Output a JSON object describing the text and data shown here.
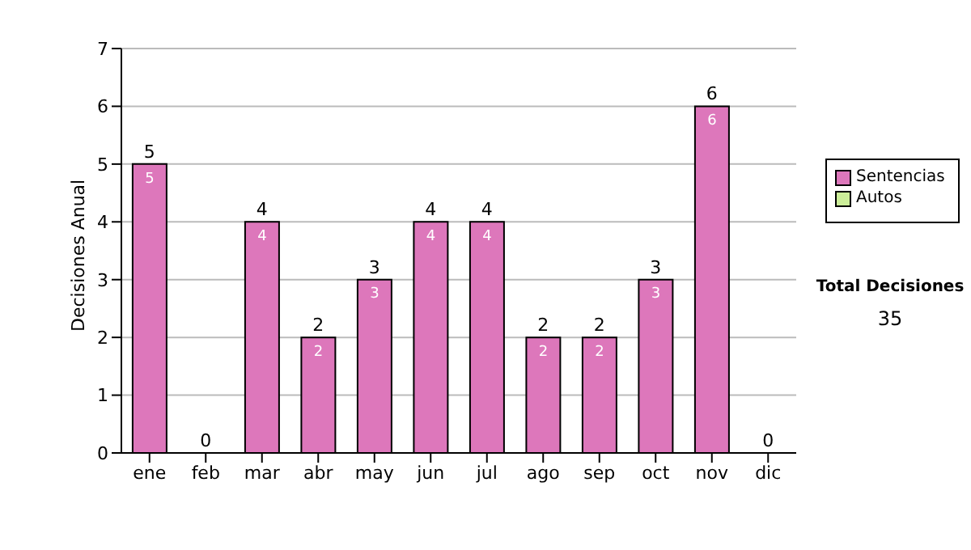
{
  "chart_data": {
    "type": "bar",
    "stacked": true,
    "ylabel": "Decisiones Anual",
    "categories": [
      "ene",
      "feb",
      "mar",
      "abr",
      "may",
      "jun",
      "jul",
      "ago",
      "sep",
      "oct",
      "nov",
      "dic"
    ],
    "series": [
      {
        "name": "Sentencias",
        "color": "#dd77bb",
        "values": [
          5,
          0,
          4,
          2,
          3,
          4,
          4,
          2,
          2,
          3,
          6,
          0
        ],
        "value_labels": [
          "5",
          null,
          "4",
          "2",
          "3",
          "4",
          "4",
          "2",
          "2",
          "3",
          "6",
          null
        ]
      },
      {
        "name": "Autos",
        "color": "#ccee99",
        "values": [
          0,
          0,
          0,
          0,
          0,
          0,
          0,
          0,
          0,
          0,
          0,
          0
        ]
      }
    ],
    "totals": [
      "5",
      "0",
      "4",
      "2",
      "3",
      "4",
      "4",
      "2",
      "2",
      "3",
      "6",
      "0"
    ],
    "ylim": [
      0,
      7
    ],
    "yticks": [
      0,
      1,
      2,
      3,
      4,
      5,
      6,
      7
    ],
    "grid": "y",
    "legend": "right",
    "annotations": [
      "Total Decisiones",
      "35"
    ]
  }
}
